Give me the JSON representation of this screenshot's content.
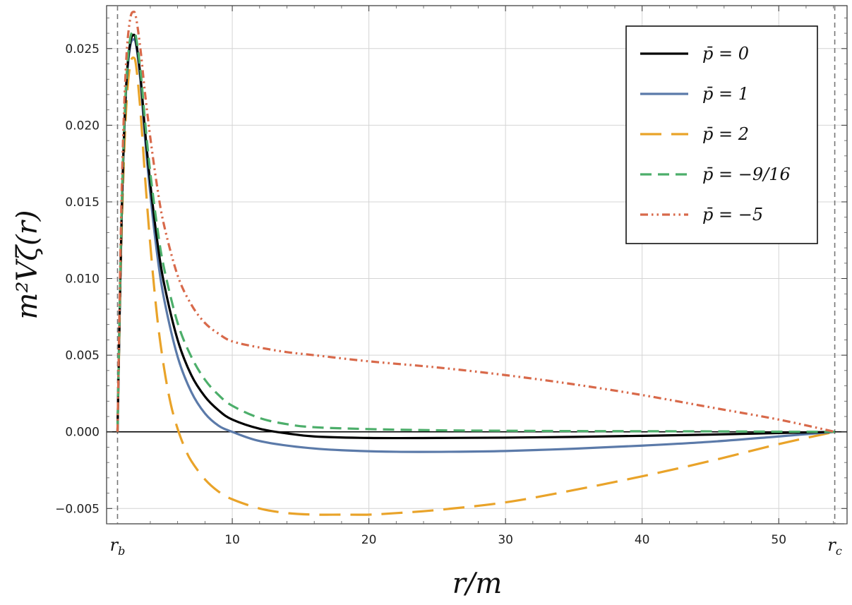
{
  "chart_data": {
    "type": "line",
    "title": "",
    "xlabel": "r/m",
    "ylabel": "m²Vζ(r)",
    "xlim": [
      0.8,
      55
    ],
    "ylim": [
      -0.006,
      0.0278
    ],
    "grid": true,
    "legend_position": "top-right",
    "x_ticks": [
      {
        "value": 10,
        "label": "10"
      },
      {
        "value": 20,
        "label": "20"
      },
      {
        "value": 30,
        "label": "30"
      },
      {
        "value": 40,
        "label": "40"
      },
      {
        "value": 50,
        "label": "50"
      }
    ],
    "y_ticks": [
      {
        "value": -0.005,
        "label": "−0.005"
      },
      {
        "value": 0.0,
        "label": "0.000"
      },
      {
        "value": 0.005,
        "label": "0.005"
      },
      {
        "value": 0.01,
        "label": "0.010"
      },
      {
        "value": 0.015,
        "label": "0.015"
      },
      {
        "value": 0.02,
        "label": "0.020"
      },
      {
        "value": 0.025,
        "label": "0.025"
      }
    ],
    "vertical_markers": [
      {
        "x": 1.6,
        "label_main": "r",
        "label_sub": "b"
      },
      {
        "x": 54.1,
        "label_main": "r",
        "label_sub": "c"
      }
    ],
    "series": [
      {
        "name": "p̄ = 0",
        "color": "#000000",
        "dash": "solid",
        "x": [
          1.6,
          1.9,
          2.2,
          2.5,
          2.8,
          3.0,
          3.3,
          3.6,
          4.0,
          4.5,
          5.0,
          6.0,
          7.0,
          8.0,
          9.0,
          10.0,
          12.0,
          14.0,
          16.0,
          20.0,
          25.0,
          30.0,
          35.0,
          40.0,
          45.0,
          50.0,
          54.1
        ],
        "y": [
          0.0,
          0.014,
          0.022,
          0.0252,
          0.0259,
          0.0252,
          0.023,
          0.0198,
          0.0162,
          0.0125,
          0.0097,
          0.006,
          0.0037,
          0.0023,
          0.0014,
          0.0008,
          0.0002,
          -0.0001,
          -0.0003,
          -0.0004,
          -0.0004,
          -0.00038,
          -0.00033,
          -0.00026,
          -0.00018,
          -8e-05,
          0.0
        ]
      },
      {
        "name": "p̄ = 1",
        "color": "#5b7aa9",
        "dash": "solid",
        "x": [
          1.6,
          1.9,
          2.2,
          2.5,
          2.8,
          3.0,
          3.3,
          3.6,
          4.0,
          4.5,
          5.0,
          6.0,
          7.0,
          8.0,
          9.0,
          10.0,
          12.0,
          15.0,
          18.0,
          22.0,
          26.0,
          30.0,
          35.0,
          40.0,
          45.0,
          50.0,
          54.1
        ],
        "y": [
          0.0,
          0.014,
          0.0218,
          0.025,
          0.0256,
          0.025,
          0.0227,
          0.0193,
          0.0155,
          0.0116,
          0.0087,
          0.0049,
          0.0026,
          0.0012,
          0.0004,
          0.0,
          -0.0006,
          -0.001,
          -0.0012,
          -0.0013,
          -0.0013,
          -0.00125,
          -0.0011,
          -0.0009,
          -0.00065,
          -0.0003,
          0.0
        ]
      },
      {
        "name": "p̄ = 2",
        "color": "#e9a329",
        "dash": "long",
        "x": [
          1.6,
          1.9,
          2.2,
          2.5,
          2.8,
          3.0,
          3.3,
          3.6,
          4.0,
          4.5,
          5.0,
          5.5,
          6.0,
          6.5,
          7.0,
          8.0,
          9.0,
          10.0,
          12.0,
          14.0,
          16.0,
          18.0,
          20.0,
          22.0,
          25.0,
          30.0,
          35.0,
          40.0,
          45.0,
          50.0,
          54.1
        ],
        "y": [
          0.0,
          0.013,
          0.0205,
          0.0238,
          0.0244,
          0.0236,
          0.0207,
          0.0168,
          0.0122,
          0.0075,
          0.0042,
          0.0018,
          0.0002,
          -0.001,
          -0.0019,
          -0.0031,
          -0.0039,
          -0.0044,
          -0.005,
          -0.0053,
          -0.0054,
          -0.0054,
          -0.0054,
          -0.0053,
          -0.0051,
          -0.0046,
          -0.0038,
          -0.0029,
          -0.0019,
          -0.0008,
          0.0
        ]
      },
      {
        "name": "p̄ = −9/16",
        "color": "#4cae6a",
        "dash": "medium",
        "x": [
          1.6,
          1.9,
          2.2,
          2.5,
          2.8,
          3.0,
          3.3,
          3.6,
          4.0,
          4.5,
          5.0,
          6.0,
          7.0,
          8.0,
          9.0,
          10.0,
          12.0,
          14.0,
          16.0,
          20.0,
          25.0,
          30.0,
          35.0,
          40.0,
          45.0,
          50.0,
          54.1
        ],
        "y": [
          0.0,
          0.0145,
          0.0222,
          0.0255,
          0.0261,
          0.0255,
          0.0234,
          0.0204,
          0.0169,
          0.0134,
          0.0107,
          0.0071,
          0.0049,
          0.0034,
          0.0024,
          0.0017,
          0.0009,
          0.0005,
          0.0003,
          0.00018,
          0.0001,
          7e-05,
          5e-05,
          4e-05,
          3e-05,
          1e-05,
          0.0
        ]
      },
      {
        "name": "p̄ = −5",
        "color": "#d8694a",
        "dash": "dashdotdot",
        "x": [
          1.6,
          1.9,
          2.2,
          2.5,
          2.8,
          3.0,
          3.3,
          3.6,
          4.0,
          4.5,
          5.0,
          6.0,
          7.0,
          8.0,
          9.0,
          10.0,
          12.0,
          14.0,
          16.0,
          20.0,
          25.0,
          30.0,
          35.0,
          40.0,
          45.0,
          50.0,
          54.1
        ],
        "y": [
          0.0,
          0.0155,
          0.0236,
          0.0268,
          0.0274,
          0.0268,
          0.0248,
          0.0222,
          0.0192,
          0.016,
          0.0135,
          0.0102,
          0.0083,
          0.0071,
          0.0064,
          0.0059,
          0.0055,
          0.0052,
          0.005,
          0.0046,
          0.0042,
          0.0037,
          0.0031,
          0.0024,
          0.0016,
          0.0008,
          0.0
        ]
      }
    ]
  }
}
